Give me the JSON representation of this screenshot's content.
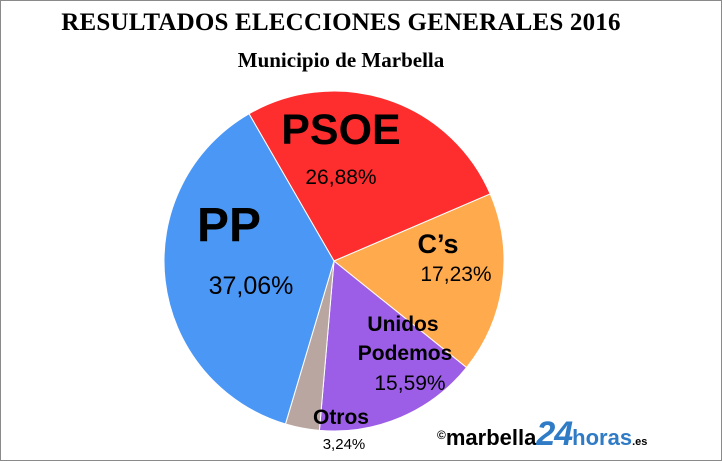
{
  "chart_data": {
    "type": "pie",
    "title": "RESULTADOS ELECCIONES GENERALES 2016",
    "subtitle": "Municipio de Marbella",
    "start_party": "PSOE",
    "slices": [
      {
        "name": "PSOE",
        "value_label": "26,88%",
        "value": 26.88,
        "color": "#fe2e2e"
      },
      {
        "name": "C’s",
        "value_label": "17,23%",
        "value": 17.23,
        "color": "#ffaa4d"
      },
      {
        "name": "Unidos Podemos",
        "value_label": "15,59%",
        "value": 15.59,
        "color": "#9c5ee6"
      },
      {
        "name": "Otros",
        "value_label": "3,24%",
        "value": 3.24,
        "color": "#baa6a1"
      },
      {
        "name": "PP",
        "value_label": "37,06%",
        "value": 37.06,
        "color": "#4b97f5"
      }
    ]
  },
  "credit": {
    "copyright": "©",
    "site": "marbella",
    "number": "24",
    "horas": "horas",
    "tld": ".es"
  }
}
